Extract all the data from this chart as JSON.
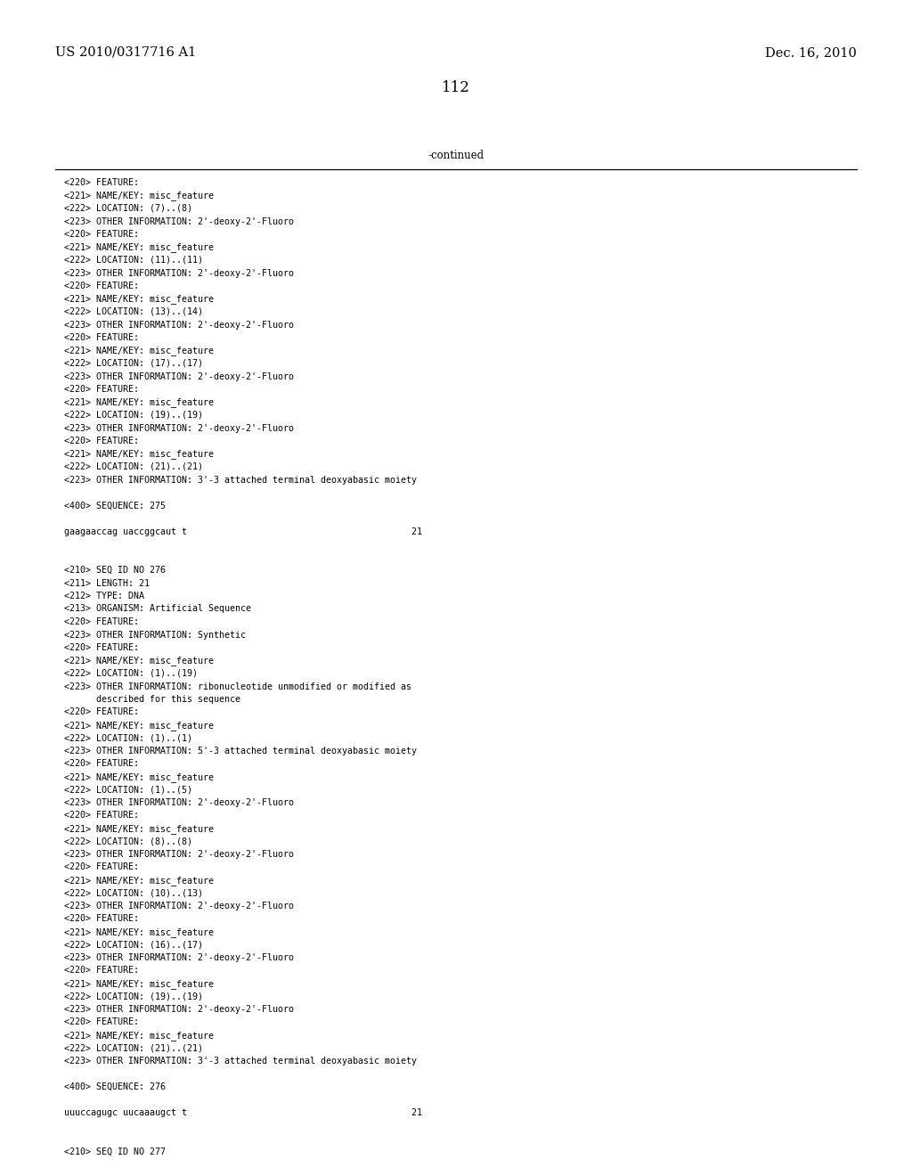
{
  "patent_number": "US 2010/0317716 A1",
  "date": "Dec. 16, 2010",
  "page_number": "112",
  "continued_label": "-continued",
  "background_color": "#ffffff",
  "text_color": "#000000",
  "font_size_header": 10.5,
  "font_size_body": 8.5,
  "font_size_page": 12,
  "lines": [
    "<220> FEATURE:",
    "<221> NAME/KEY: misc_feature",
    "<222> LOCATION: (7)..(8)",
    "<223> OTHER INFORMATION: 2'-deoxy-2'-Fluoro",
    "<220> FEATURE:",
    "<221> NAME/KEY: misc_feature",
    "<222> LOCATION: (11)..(11)",
    "<223> OTHER INFORMATION: 2'-deoxy-2'-Fluoro",
    "<220> FEATURE:",
    "<221> NAME/KEY: misc_feature",
    "<222> LOCATION: (13)..(14)",
    "<223> OTHER INFORMATION: 2'-deoxy-2'-Fluoro",
    "<220> FEATURE:",
    "<221> NAME/KEY: misc_feature",
    "<222> LOCATION: (17)..(17)",
    "<223> OTHER INFORMATION: 2'-deoxy-2'-Fluoro",
    "<220> FEATURE:",
    "<221> NAME/KEY: misc_feature",
    "<222> LOCATION: (19)..(19)",
    "<223> OTHER INFORMATION: 2'-deoxy-2'-Fluoro",
    "<220> FEATURE:",
    "<221> NAME/KEY: misc_feature",
    "<222> LOCATION: (21)..(21)",
    "<223> OTHER INFORMATION: 3'-3 attached terminal deoxyabasic moiety",
    "",
    "<400> SEQUENCE: 275",
    "",
    "gaagaaccag uaccggcaut t                                          21",
    "",
    "",
    "<210> SEQ ID NO 276",
    "<211> LENGTH: 21",
    "<212> TYPE: DNA",
    "<213> ORGANISM: Artificial Sequence",
    "<220> FEATURE:",
    "<223> OTHER INFORMATION: Synthetic",
    "<220> FEATURE:",
    "<221> NAME/KEY: misc_feature",
    "<222> LOCATION: (1)..(19)",
    "<223> OTHER INFORMATION: ribonucleotide unmodified or modified as",
    "      described for this sequence",
    "<220> FEATURE:",
    "<221> NAME/KEY: misc_feature",
    "<222> LOCATION: (1)..(1)",
    "<223> OTHER INFORMATION: 5'-3 attached terminal deoxyabasic moiety",
    "<220> FEATURE:",
    "<221> NAME/KEY: misc_feature",
    "<222> LOCATION: (1)..(5)",
    "<223> OTHER INFORMATION: 2'-deoxy-2'-Fluoro",
    "<220> FEATURE:",
    "<221> NAME/KEY: misc_feature",
    "<222> LOCATION: (8)..(8)",
    "<223> OTHER INFORMATION: 2'-deoxy-2'-Fluoro",
    "<220> FEATURE:",
    "<221> NAME/KEY: misc_feature",
    "<222> LOCATION: (10)..(13)",
    "<223> OTHER INFORMATION: 2'-deoxy-2'-Fluoro",
    "<220> FEATURE:",
    "<221> NAME/KEY: misc_feature",
    "<222> LOCATION: (16)..(17)",
    "<223> OTHER INFORMATION: 2'-deoxy-2'-Fluoro",
    "<220> FEATURE:",
    "<221> NAME/KEY: misc_feature",
    "<222> LOCATION: (19)..(19)",
    "<223> OTHER INFORMATION: 2'-deoxy-2'-Fluoro",
    "<220> FEATURE:",
    "<221> NAME/KEY: misc_feature",
    "<222> LOCATION: (21)..(21)",
    "<223> OTHER INFORMATION: 3'-3 attached terminal deoxyabasic moiety",
    "",
    "<400> SEQUENCE: 276",
    "",
    "uuuccagugc uucaaaugct t                                          21",
    "",
    "",
    "<210> SEQ ID NO 277"
  ]
}
